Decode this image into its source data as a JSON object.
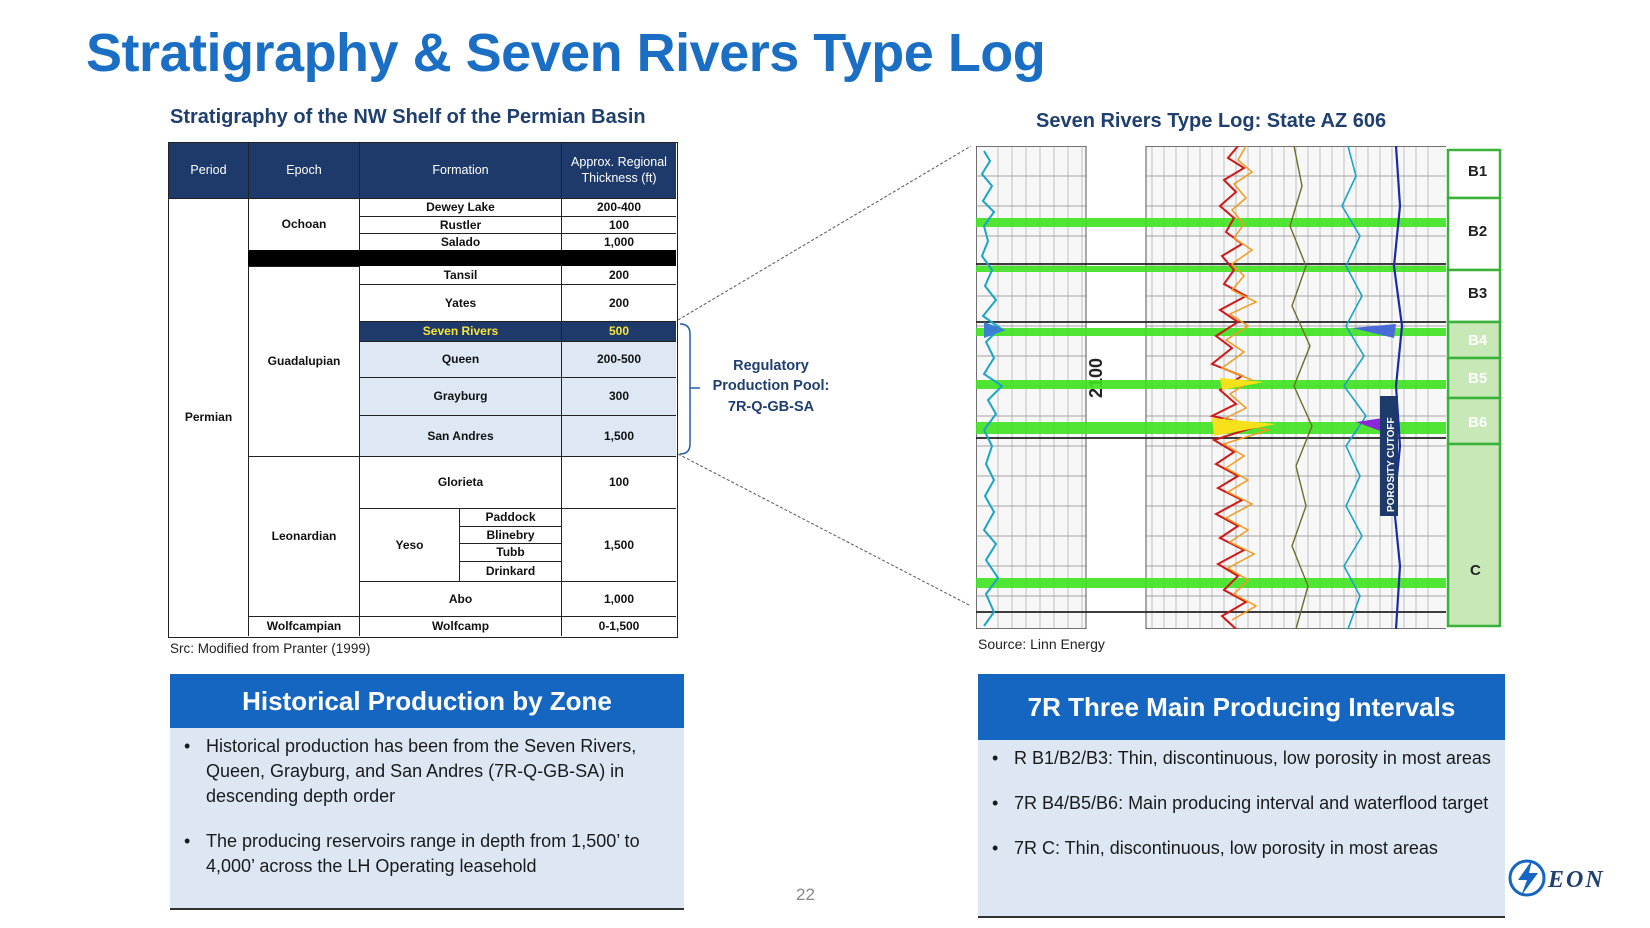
{
  "title": "Stratigraphy & Seven Rivers Type Log",
  "strat": {
    "heading": "Stratigraphy of the NW Shelf of the Permian Basin",
    "headers": {
      "period": "Period",
      "epoch": "Epoch",
      "formation": "Formation",
      "thickness": "Approx. Regional Thickness (ft)"
    },
    "period": "Permian",
    "epochs": {
      "ochoan": "Ochoan",
      "guadalupian": "Guadalupian",
      "leonardian": "Leonardian",
      "wolfcampian": "Wolfcampian"
    },
    "rows": {
      "dewey": {
        "formation": "Dewey Lake",
        "thickness": "200-400"
      },
      "rustler": {
        "formation": "Rustler",
        "thickness": "100"
      },
      "salado": {
        "formation": "Salado",
        "thickness": "1,000"
      },
      "tansil": {
        "formation": "Tansil",
        "thickness": "200"
      },
      "yates": {
        "formation": "Yates",
        "thickness": "200"
      },
      "seven": {
        "formation": "Seven Rivers",
        "thickness": "500"
      },
      "queen": {
        "formation": "Queen",
        "thickness": "200-500"
      },
      "grayburg": {
        "formation": "Grayburg",
        "thickness": "300"
      },
      "sanandres": {
        "formation": "San Andres",
        "thickness": "1,500"
      },
      "glorieta": {
        "formation": "Glorieta",
        "thickness": "100"
      },
      "yeso": {
        "formation": "Yeso",
        "thickness": "1,500",
        "members": [
          "Paddock",
          "Blinebry",
          "Tubb",
          "Drinkard"
        ]
      },
      "abo": {
        "formation": "Abo",
        "thickness": "1,000"
      },
      "wolfcamp": {
        "formation": "Wolfcamp",
        "thickness": "0-1,500"
      }
    },
    "source": "Src: Modified from Pranter (1999)"
  },
  "pool": {
    "line1": "Regulatory",
    "line2": "Production Pool:",
    "line3": "7R-Q-GB-SA"
  },
  "log": {
    "heading": "Seven Rivers Type Log: State AZ 606",
    "zones": [
      "B1",
      "B2",
      "B3",
      "B4",
      "B5",
      "B6",
      "C"
    ],
    "depth_label": "2100",
    "cutoff_label": "POROSITY CUTOFF",
    "source": "Source: Linn Energy"
  },
  "historical": {
    "title": "Historical Production by Zone",
    "bullets": [
      "Historical production has been from the Seven Rivers, Queen, Grayburg, and San Andres (7R-Q-GB-SA) in descending depth order",
      "The producing reservoirs range in depth from 1,500’ to 4,000’ across the LH Operating leasehold"
    ]
  },
  "intervals": {
    "title": "7R Three Main Producing Intervals",
    "bullets": [
      "R B1/B2/B3: Thin, discontinuous, low porosity in most areas",
      "7R B4/B5/B6: Main producing interval and waterflood target",
      "7R C: Thin, discontinuous, low porosity in most areas"
    ]
  },
  "page_number": "22",
  "logo": {
    "text": "EON"
  },
  "colors": {
    "title_blue": "#1a6fc4",
    "header_navy": "#1e3a6b",
    "box_blue": "#1566c0",
    "box_body": "#dde7f3"
  }
}
